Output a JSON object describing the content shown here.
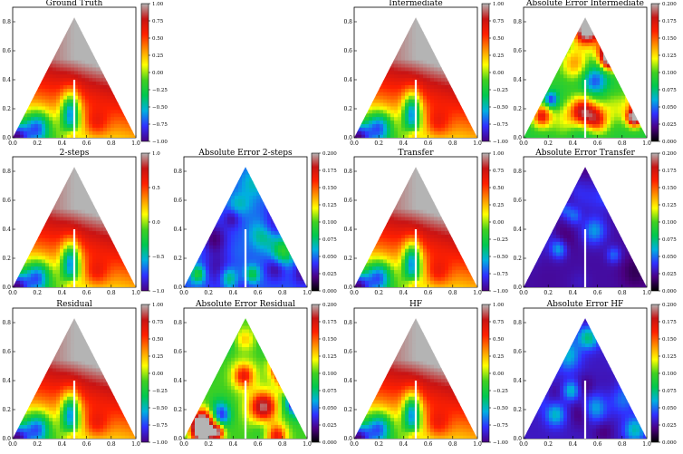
{
  "colors": {
    "field_colormap": [
      "#4b0082",
      "#3030ff",
      "#00b0e0",
      "#00c850",
      "#40d020",
      "#ffff00",
      "#ff9000",
      "#ff2000",
      "#c81414",
      "#b4b4b4"
    ],
    "error_colormap": [
      "#000000",
      "#4b0082",
      "#3030ff",
      "#00b0e0",
      "#00c850",
      "#40d020",
      "#ffff00",
      "#ff9000",
      "#ff2000",
      "#c81414",
      "#b4b4b4"
    ],
    "crack_line": "#ffffff"
  },
  "chart_data": [
    {
      "type": "heatmap",
      "name": "ground-truth",
      "title": "Ground Truth",
      "field": "field",
      "error_level": 0,
      "xticks": [
        "0.0",
        "0.2",
        "0.4",
        "0.6",
        "0.8",
        "1.0"
      ],
      "yticks": [
        "0.0",
        "0.2",
        "0.4",
        "0.6",
        "0.8"
      ],
      "colorbar": {
        "ticks": [
          "1.00",
          "0.75",
          "0.50",
          "0.25",
          "0.00",
          "−0.25",
          "−0.50",
          "−0.75",
          "−1.00"
        ],
        "range": [
          -1,
          1
        ]
      }
    },
    {
      "type": "heatmap",
      "name": "intermediate",
      "title": "Intermediate",
      "field": "field",
      "error_level": 0,
      "xticks": [
        "0.0",
        "0.2",
        "0.4",
        "0.6",
        "0.8",
        "1.0"
      ],
      "yticks": [
        "0.0",
        "0.2",
        "0.4",
        "0.6",
        "0.8"
      ],
      "colorbar": {
        "ticks": [
          "1.00",
          "0.75",
          "0.50",
          "0.25",
          "0.00",
          "−0.25",
          "−0.50",
          "−0.75",
          "−1.00"
        ],
        "range": [
          -1,
          1
        ]
      }
    },
    {
      "type": "heatmap",
      "name": "abs-error-intermediate",
      "title": "Absolute Error Intermediate",
      "field": "error",
      "error_level": 0.09,
      "xticks": [
        "0.0",
        "0.2",
        "0.4",
        "0.6",
        "0.8",
        "1.0"
      ],
      "yticks": [
        "0.0",
        "0.2",
        "0.4",
        "0.6",
        "0.8"
      ],
      "colorbar": {
        "ticks": [
          "0.200",
          "0.175",
          "0.150",
          "0.125",
          "0.100",
          "0.075",
          "0.050",
          "0.025",
          "0.000"
        ],
        "range": [
          0,
          0.2
        ]
      }
    },
    {
      "type": "heatmap",
      "name": "two-steps",
      "title": "2-steps",
      "field": "field",
      "error_level": 0,
      "xticks": [
        "0.0",
        "0.2",
        "0.4",
        "0.6",
        "0.8",
        "1.0"
      ],
      "yticks": [
        "0.0",
        "0.2",
        "0.4",
        "0.6",
        "0.8"
      ],
      "colorbar": {
        "ticks": [
          "1.0",
          "0.5",
          "0.0",
          "−0.5",
          "−1.0"
        ],
        "range": [
          -1,
          1
        ]
      }
    },
    {
      "type": "heatmap",
      "name": "abs-error-2-steps",
      "title": "Absolute Error 2-steps",
      "field": "error",
      "error_level": 0.045,
      "xticks": [
        "0.0",
        "0.2",
        "0.4",
        "0.6",
        "0.8",
        "1.0"
      ],
      "yticks": [
        "0.0",
        "0.2",
        "0.4",
        "0.6",
        "0.8"
      ],
      "colorbar": {
        "ticks": [
          "0.200",
          "0.175",
          "0.150",
          "0.125",
          "0.100",
          "0.075",
          "0.050",
          "0.025",
          "0.000"
        ],
        "range": [
          0,
          0.2
        ]
      }
    },
    {
      "type": "heatmap",
      "name": "transfer",
      "title": "Transfer",
      "field": "field",
      "error_level": 0,
      "xticks": [
        "0.0",
        "0.2",
        "0.4",
        "0.6",
        "0.8",
        "1.0"
      ],
      "yticks": [
        "0.0",
        "0.2",
        "0.4",
        "0.6",
        "0.8"
      ],
      "colorbar": {
        "ticks": [
          "1.00",
          "0.75",
          "0.50",
          "0.25",
          "0.00",
          "−0.25",
          "−0.50",
          "−0.75",
          "−1.00"
        ],
        "range": [
          -1,
          1
        ]
      }
    },
    {
      "type": "heatmap",
      "name": "abs-error-transfer",
      "title": "Absolute Error Transfer",
      "field": "error",
      "error_level": 0.025,
      "xticks": [
        "0.0",
        "0.2",
        "0.4",
        "0.6",
        "0.8",
        "1.0"
      ],
      "yticks": [
        "0.0",
        "0.2",
        "0.4",
        "0.6",
        "0.8"
      ],
      "colorbar": {
        "ticks": [
          "0.200",
          "0.175",
          "0.150",
          "0.125",
          "0.100",
          "0.075",
          "0.050",
          "0.025",
          "0.000"
        ],
        "range": [
          0,
          0.2
        ]
      }
    },
    {
      "type": "heatmap",
      "name": "residual",
      "title": "Residual",
      "field": "field",
      "error_level": 0,
      "xticks": [
        "0.0",
        "0.2",
        "0.4",
        "0.6",
        "0.8",
        "1.0"
      ],
      "yticks": [
        "0.0",
        "0.2",
        "0.4",
        "0.6",
        "0.8"
      ],
      "colorbar": {
        "ticks": [
          "1.00",
          "0.75",
          "0.50",
          "0.25",
          "0.00",
          "−0.25",
          "−0.50",
          "−0.75",
          "−1.00"
        ],
        "range": [
          -1,
          1
        ]
      }
    },
    {
      "type": "heatmap",
      "name": "abs-error-residual",
      "title": "Absolute Error Residual",
      "field": "error",
      "error_level": 0.1,
      "xticks": [
        "0.0",
        "0.2",
        "0.4",
        "0.6",
        "0.8",
        "1.0"
      ],
      "yticks": [
        "0.0",
        "0.2",
        "0.4",
        "0.6",
        "0.8"
      ],
      "colorbar": {
        "ticks": [
          "0.200",
          "0.175",
          "0.150",
          "0.125",
          "0.100",
          "0.075",
          "0.050",
          "0.025",
          "0.000"
        ],
        "range": [
          0,
          0.2
        ]
      }
    },
    {
      "type": "heatmap",
      "name": "hf",
      "title": "HF",
      "field": "field",
      "error_level": 0,
      "xticks": [
        "0.0",
        "0.2",
        "0.4",
        "0.6",
        "0.8",
        "1.0"
      ],
      "yticks": [
        "0.0",
        "0.2",
        "0.4",
        "0.6",
        "0.8"
      ],
      "colorbar": {
        "ticks": [
          "1.00",
          "0.75",
          "0.50",
          "0.25",
          "0.00",
          "−0.25",
          "−0.50",
          "−0.75",
          "−1.00"
        ],
        "range": [
          -1,
          1
        ]
      }
    },
    {
      "type": "heatmap",
      "name": "abs-error-hf",
      "title": "Absolute Error HF",
      "field": "error",
      "error_level": 0.03,
      "xticks": [
        "0.0",
        "0.2",
        "0.4",
        "0.6",
        "0.8",
        "1.0"
      ],
      "yticks": [
        "0.0",
        "0.2",
        "0.4",
        "0.6",
        "0.8"
      ],
      "colorbar": {
        "ticks": [
          "0.200",
          "0.175",
          "0.150",
          "0.125",
          "0.100",
          "0.075",
          "0.050",
          "0.025",
          "0.000"
        ],
        "range": [
          0,
          0.2
        ]
      }
    }
  ]
}
